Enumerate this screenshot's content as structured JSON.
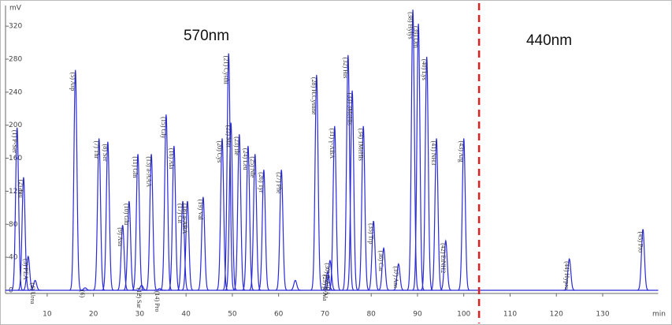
{
  "chart_data": {
    "type": "chromatogram",
    "y_label": "mV",
    "x_label": "min",
    "annotations": [
      "570nm",
      "440nm"
    ],
    "divider": 103.3,
    "divider_color": "#e02020",
    "color": "#2a2ad8",
    "xlim": [
      1,
      142
    ],
    "xticks": [
      10,
      20,
      30,
      40,
      50,
      60,
      70,
      80,
      90,
      100,
      110,
      120,
      130
    ],
    "ylim": [
      0,
      345
    ],
    "yticks": [
      0,
      40,
      80,
      120,
      160,
      200,
      240,
      280,
      320
    ],
    "x": [
      3.5,
      4.9,
      5.9,
      7.4,
      16.1,
      18.2,
      21.2,
      23.1,
      26.3,
      27.7,
      29.6,
      30.4,
      32.5,
      34.3,
      35.7,
      37.4,
      39.3,
      40.3,
      43.7,
      47.8,
      49.2,
      49.7,
      51.5,
      53.4,
      54.9,
      56.8,
      60.6,
      63.6,
      68.2,
      70.6,
      71.1,
      72.1,
      75.0,
      75.9,
      78.3,
      80.5,
      82.7,
      85.9,
      89.0,
      90.2,
      92.0,
      94.1,
      96.1,
      100.0,
      122.8,
      138.7
    ],
    "values": [
      197,
      137,
      41,
      12,
      267,
      3,
      184,
      180,
      79,
      108,
      165,
      6,
      165,
      2,
      213,
      175,
      108,
      108,
      113,
      184,
      287,
      203,
      189,
      175,
      165,
      146,
      146,
      12,
      261,
      22,
      36,
      199,
      285,
      242,
      199,
      84,
      51,
      32,
      340,
      323,
      283,
      184,
      60,
      184,
      38,
      74
    ],
    "labels": [
      "(1) P-Ser",
      "(2) Tau",
      "(3) PEA",
      "(4) Urea",
      "(5) Asp",
      "(6)",
      "(7) Thr",
      "(8) Ser",
      "(9) Asn",
      "(10) Glu",
      "(11) Gln",
      "(12) Sar",
      "(13) a-AAA",
      "(14) Pro",
      "(15) Gly",
      "(16) Ala",
      "(17) Cit",
      "(18) a-ABA",
      "(19) Val",
      "(20) Cys",
      "(21) Cysthi",
      "(22) Met",
      "(23) Ile",
      "(24) Leu",
      "(25) Nle",
      "(26) Tyr",
      "(27) Phe",
      null,
      "(28) H.Cystine",
      "(29) β-Ala",
      "(30) β-AiBA",
      "(31) γ-ABA",
      "(32) His",
      "(33) 3MeHis",
      "(34) 1MeHis",
      "(35) Trp",
      "(36) Car",
      "(37) Ans",
      "(38) Hylys",
      "(39) Orn",
      "(40) Lys",
      "(41) NH3",
      "(42) EtNH2",
      "(43) Arg",
      "(44) Hypro",
      "(45) Pro"
    ]
  }
}
